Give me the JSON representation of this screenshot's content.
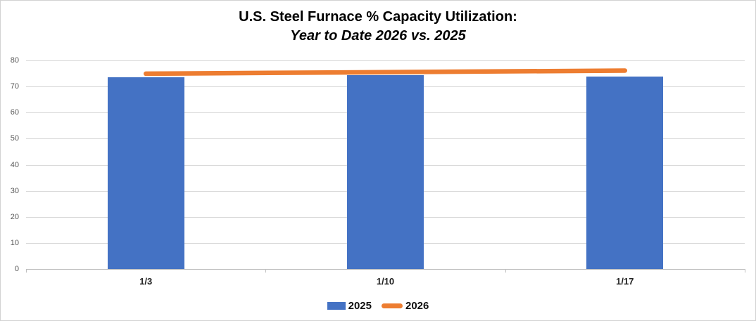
{
  "chart_data": {
    "type": "bar+line",
    "title": "U.S. Steel Furnace % Capacity Utilization:",
    "subtitle": "Year to Date 2026 vs. 2025",
    "categories": [
      "1/3",
      "1/10",
      "1/17"
    ],
    "series": [
      {
        "name": "2025",
        "type": "bar",
        "color": "#4472C4",
        "values": [
          73.6,
          74.3,
          73.7
        ]
      },
      {
        "name": "2026",
        "type": "line",
        "color": "#ED7D31",
        "values": [
          74.9,
          75.5,
          76.1
        ]
      }
    ],
    "ylim": [
      0,
      80
    ],
    "yticks": [
      0,
      10,
      20,
      30,
      40,
      50,
      60,
      70,
      80
    ],
    "xlabel": "",
    "ylabel": "",
    "grid": true,
    "legend_position": "bottom",
    "legend_entries": [
      "2025",
      "2026"
    ]
  }
}
